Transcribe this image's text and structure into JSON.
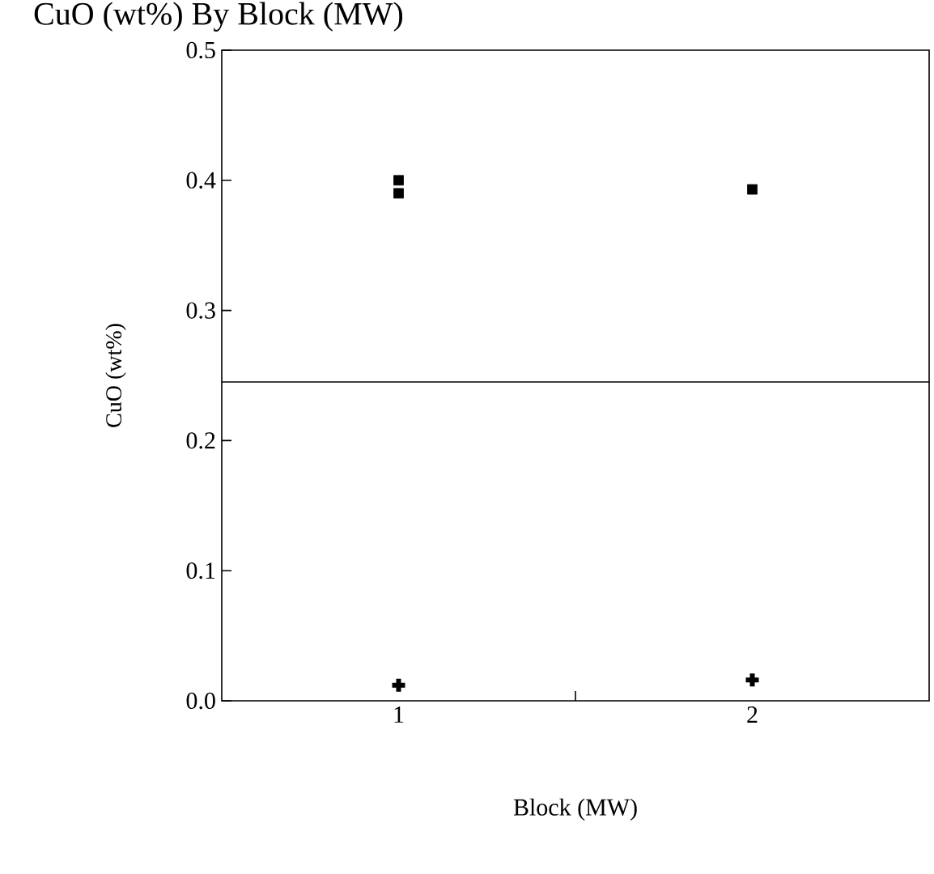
{
  "chart_data": {
    "type": "scatter",
    "title": "CuO (wt%) By Block (MW)",
    "xlabel": "Block (MW)",
    "ylabel": "CuO (wt%)",
    "categories": [
      "1",
      "2"
    ],
    "series": [
      {
        "color": "#000000",
        "marker": "square",
        "x": [
          "1",
          "1",
          "2"
        ],
        "values": [
          0.4,
          0.39,
          0.393
        ]
      },
      {
        "color": "#000000",
        "marker": "cross",
        "x": [
          "1",
          "2"
        ],
        "values": [
          0.012,
          0.016
        ]
      }
    ],
    "ylim": [
      0,
      0.5
    ],
    "yticks": [
      {
        "value": 0,
        "label": "0.0"
      },
      {
        "value": 0.1,
        "label": "0.1"
      },
      {
        "value": 0.2,
        "label": "0.2"
      },
      {
        "value": 0.3,
        "label": "0.3"
      },
      {
        "value": 0.4,
        "label": "0.4"
      },
      {
        "value": 0.5,
        "label": "0.5"
      }
    ],
    "ref_lines": [
      {
        "axis": "y",
        "value": 0.245,
        "color": "#000000"
      }
    ],
    "grid": false
  }
}
